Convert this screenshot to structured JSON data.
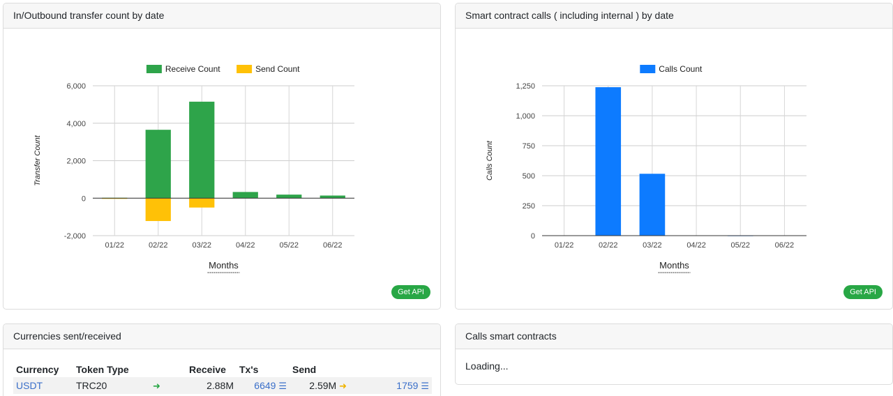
{
  "transfer_card": {
    "title": "In/Outbound transfer count by date",
    "api_button": "Get API"
  },
  "calls_card": {
    "title": "Smart contract calls ( including internal ) by date",
    "api_button": "Get API"
  },
  "currencies_card": {
    "title": "Currencies sent/received",
    "headers": [
      "Currency",
      "Token Type",
      "Receive",
      "Tx's",
      "Send"
    ],
    "rows": [
      {
        "currency": "USDT",
        "token_type": "TRC20",
        "receive": "2.88M",
        "receive_tx": "6649",
        "send": "2.59M",
        "send_tx": "1759"
      }
    ]
  },
  "contracts_card": {
    "title": "Calls smart contracts",
    "status": "Loading..."
  },
  "colors": {
    "receive": "#2ea44a",
    "send": "#ffc107",
    "calls": "#0d7bff",
    "api": "#28a745"
  },
  "chart_data": [
    {
      "type": "bar",
      "categories": [
        "01/22",
        "02/22",
        "03/22",
        "04/22",
        "05/22",
        "06/22"
      ],
      "series": [
        {
          "name": "Receive Count",
          "values": [
            20,
            3650,
            5150,
            330,
            190,
            140
          ]
        },
        {
          "name": "Send Count",
          "values": [
            -10,
            -1220,
            -500,
            0,
            0,
            0
          ]
        }
      ],
      "xlabel": "Months",
      "ylabel": "Transfer Count",
      "ylim": [
        -2000,
        6000
      ],
      "yticks": [
        6000,
        4000,
        2000,
        0,
        -2000
      ],
      "ytick_labels": [
        "6,000",
        "4,000",
        "2,000",
        "0",
        "-2,000"
      ],
      "legend": "top",
      "grid": true
    },
    {
      "type": "bar",
      "categories": [
        "01/22",
        "02/22",
        "03/22",
        "04/22",
        "05/22",
        "06/22"
      ],
      "series": [
        {
          "name": "Calls Count",
          "values": [
            0,
            1238,
            516,
            0,
            2,
            0
          ]
        }
      ],
      "xlabel": "Months",
      "ylabel": "Calls Count",
      "ylim": [
        0,
        1250
      ],
      "yticks": [
        1250,
        1000,
        750,
        500,
        250,
        0
      ],
      "ytick_labels": [
        "1,250",
        "1,000",
        "750",
        "500",
        "250",
        "0"
      ],
      "legend": "top",
      "grid": true
    }
  ]
}
